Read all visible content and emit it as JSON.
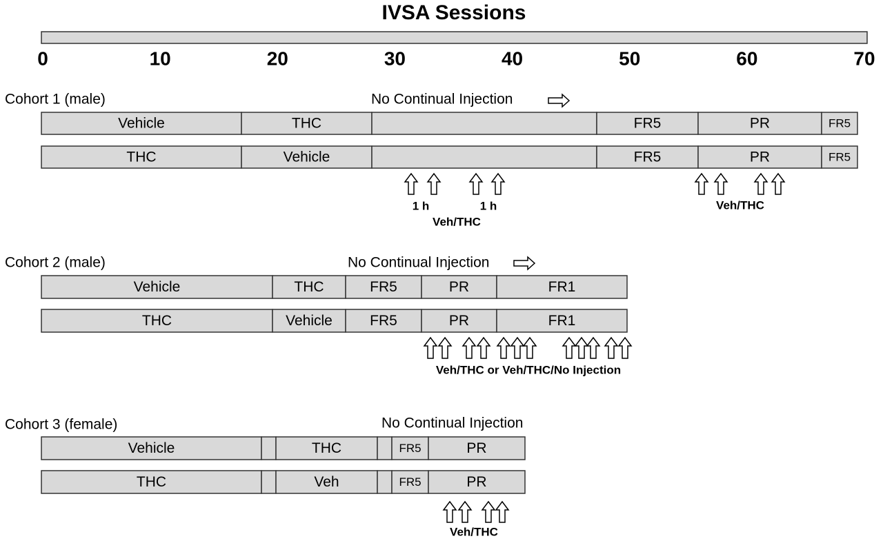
{
  "title": "IVSA Sessions",
  "axis_ticks": [
    0,
    10,
    20,
    30,
    40,
    50,
    60,
    70
  ],
  "cohorts": [
    {
      "label": "Cohort 1 (male)",
      "note": "No Continual Injection",
      "rows": [
        [
          "Vehicle",
          "THC",
          "FR5",
          "PR",
          "FR5"
        ],
        [
          "THC",
          "Vehicle",
          "FR5",
          "PR",
          "FR5"
        ]
      ],
      "annotations": [
        "1 h",
        "1 h",
        "Veh/THC",
        "Veh/THC"
      ]
    },
    {
      "label": "Cohort 2 (male)",
      "note": "No Continual Injection",
      "rows": [
        [
          "Vehicle",
          "THC",
          "FR5",
          "PR",
          "FR1"
        ],
        [
          "THC",
          "Vehicle",
          "FR5",
          "PR",
          "FR1"
        ]
      ],
      "annotations": [
        "Veh/THC or Veh/THC/No Injection"
      ]
    },
    {
      "label": "Cohort 3 (female)",
      "note": "No Continual Injection",
      "rows": [
        [
          "Vehicle",
          "THC",
          "FR5",
          "PR"
        ],
        [
          "THC",
          "Veh",
          "FR5",
          "PR"
        ]
      ],
      "annotations": [
        "Veh/THC"
      ]
    }
  ]
}
